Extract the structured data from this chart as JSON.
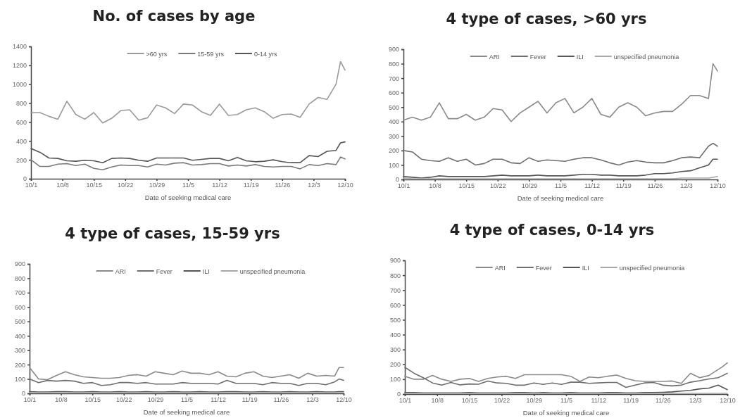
{
  "chart_data": [
    {
      "type": "line",
      "title": "No. of cases by age",
      "xlabel": "Date of seeking medical care",
      "legend": "top",
      "grid": false,
      "marker": "none",
      "x": [
        "--10-01",
        "--10-03",
        "--10-05",
        "--10-07",
        "--10-09",
        "--10-11",
        "--10-13",
        "--10-15",
        "--10-17",
        "--10-19",
        "--10-21",
        "--10-23",
        "--10-25",
        "--10-27",
        "--10-29",
        "--10-31",
        "--11-02",
        "--11-04",
        "--11-06",
        "--11-08",
        "--11-10",
        "--11-12",
        "--11-14",
        "--11-16",
        "--11-18",
        "--11-20",
        "--11-22",
        "--11-24",
        "--11-26",
        "--11-28",
        "--11-30",
        "--12-02",
        "--12-04",
        "--12-06",
        "--12-08",
        "--12-09",
        "--12-10"
      ],
      "xlim": [
        "--10-01",
        "--12-10"
      ],
      "xticks": [
        {
          "value": "--10-01",
          "label": "10/1"
        },
        {
          "value": "--10-08",
          "label": "10/8"
        },
        {
          "value": "--10-15",
          "label": "10/15"
        },
        {
          "value": "--10-22",
          "label": "10/22"
        },
        {
          "value": "--10-29",
          "label": "10/29"
        },
        {
          "value": "--11-05",
          "label": "11/5"
        },
        {
          "value": "--11-12",
          "label": "11/12"
        },
        {
          "value": "--11-19",
          "label": "11/19"
        },
        {
          "value": "--11-26",
          "label": "11/26"
        },
        {
          "value": "--12-03",
          "label": "12/3"
        },
        {
          "value": "--12-10",
          "label": "12/10"
        }
      ],
      "ylim": [
        0,
        1400
      ],
      "yticks": [
        0,
        200,
        400,
        600,
        800,
        1000,
        1200,
        1400
      ],
      "series": [
        {
          "name": ">60 yrs",
          "color": "#9a9a9a",
          "values": [
            700,
            700,
            660,
            630,
            820,
            680,
            630,
            700,
            590,
            640,
            720,
            730,
            620,
            645,
            780,
            750,
            690,
            790,
            780,
            710,
            670,
            790,
            670,
            680,
            730,
            750,
            710,
            640,
            680,
            685,
            650,
            790,
            860,
            840,
            1000,
            1240,
            1150
          ]
        },
        {
          "name": "15-59 yrs",
          "color": "#7a7a7a",
          "values": [
            200,
            130,
            130,
            155,
            160,
            140,
            155,
            110,
            95,
            125,
            145,
            140,
            140,
            125,
            155,
            145,
            165,
            170,
            145,
            150,
            160,
            160,
            135,
            145,
            135,
            150,
            130,
            125,
            130,
            130,
            105,
            150,
            140,
            160,
            150,
            230,
            210
          ]
        },
        {
          "name": "0-14 yrs",
          "color": "#555555",
          "values": [
            320,
            280,
            220,
            215,
            190,
            185,
            195,
            190,
            170,
            215,
            220,
            215,
            195,
            185,
            220,
            220,
            220,
            220,
            195,
            205,
            215,
            215,
            190,
            225,
            190,
            180,
            185,
            200,
            180,
            170,
            170,
            245,
            235,
            290,
            300,
            380,
            390
          ]
        }
      ]
    },
    {
      "type": "line",
      "title": "4 type of cases, >60 yrs",
      "xlabel": "Date of seeking medical care",
      "legend": "top",
      "grid": false,
      "marker": "none",
      "x": [
        "--10-01",
        "--10-03",
        "--10-05",
        "--10-07",
        "--10-09",
        "--10-11",
        "--10-13",
        "--10-15",
        "--10-17",
        "--10-19",
        "--10-21",
        "--10-23",
        "--10-25",
        "--10-27",
        "--10-29",
        "--10-31",
        "--11-02",
        "--11-04",
        "--11-06",
        "--11-08",
        "--11-10",
        "--11-12",
        "--11-14",
        "--11-16",
        "--11-18",
        "--11-20",
        "--11-22",
        "--11-24",
        "--11-26",
        "--11-28",
        "--11-30",
        "--12-02",
        "--12-04",
        "--12-06",
        "--12-08",
        "--12-09",
        "--12-10"
      ],
      "xlim": [
        "--10-01",
        "--12-10"
      ],
      "xticks": [
        {
          "value": "--10-01",
          "label": "10/1"
        },
        {
          "value": "--10-08",
          "label": "10/8"
        },
        {
          "value": "--10-15",
          "label": "10/15"
        },
        {
          "value": "--10-22",
          "label": "10/22"
        },
        {
          "value": "--10-29",
          "label": "10/29"
        },
        {
          "value": "--11-05",
          "label": "11/5"
        },
        {
          "value": "--11-12",
          "label": "11/12"
        },
        {
          "value": "--11-19",
          "label": "11/19"
        },
        {
          "value": "--11-26",
          "label": "11/26"
        },
        {
          "value": "--12-03",
          "label": "12/3"
        },
        {
          "value": "--12-10",
          "label": "12/10"
        }
      ],
      "ylim": [
        0,
        900
      ],
      "yticks": [
        0,
        100,
        200,
        300,
        400,
        500,
        600,
        700,
        800,
        900
      ],
      "series": [
        {
          "name": "ARI",
          "color": "#8a8a8a",
          "values": [
            410,
            430,
            410,
            430,
            530,
            420,
            420,
            450,
            410,
            430,
            490,
            480,
            400,
            460,
            500,
            540,
            460,
            530,
            560,
            460,
            500,
            560,
            450,
            430,
            500,
            530,
            500,
            440,
            460,
            470,
            470,
            520,
            580,
            580,
            560,
            800,
            750
          ]
        },
        {
          "name": "Fever",
          "color": "#6e6e6e",
          "values": [
            200,
            190,
            140,
            130,
            125,
            150,
            125,
            140,
            100,
            110,
            140,
            140,
            115,
            110,
            150,
            125,
            135,
            130,
            125,
            140,
            150,
            150,
            135,
            115,
            100,
            120,
            130,
            120,
            115,
            115,
            130,
            150,
            155,
            150,
            230,
            250,
            230
          ]
        },
        {
          "name": "ILI",
          "color": "#555555",
          "values": [
            20,
            15,
            10,
            15,
            25,
            20,
            20,
            20,
            20,
            20,
            25,
            30,
            25,
            25,
            25,
            30,
            25,
            25,
            25,
            30,
            35,
            35,
            30,
            30,
            25,
            25,
            25,
            30,
            40,
            40,
            45,
            55,
            60,
            80,
            100,
            140,
            140
          ]
        },
        {
          "name": "unspecified pneumonia",
          "color": "#a8a8a8",
          "values": [
            10,
            5,
            5,
            5,
            5,
            5,
            5,
            5,
            5,
            5,
            5,
            5,
            5,
            5,
            5,
            5,
            5,
            5,
            5,
            5,
            5,
            5,
            5,
            5,
            5,
            5,
            5,
            5,
            5,
            5,
            5,
            10,
            10,
            10,
            10,
            15,
            20
          ]
        }
      ]
    },
    {
      "type": "line",
      "title": "4 type of cases, 15-59 yrs",
      "xlabel": "Date of seeking medical care",
      "legend": "top",
      "grid": false,
      "marker": "none",
      "x": [
        "--10-01",
        "--10-03",
        "--10-05",
        "--10-07",
        "--10-09",
        "--10-11",
        "--10-13",
        "--10-15",
        "--10-17",
        "--10-19",
        "--10-21",
        "--10-23",
        "--10-25",
        "--10-27",
        "--10-29",
        "--10-31",
        "--11-02",
        "--11-04",
        "--11-06",
        "--11-08",
        "--11-10",
        "--11-12",
        "--11-14",
        "--11-16",
        "--11-18",
        "--11-20",
        "--11-22",
        "--11-24",
        "--11-26",
        "--11-28",
        "--11-30",
        "--12-02",
        "--12-04",
        "--12-06",
        "--12-08",
        "--12-09",
        "--12-10"
      ],
      "xlim": [
        "--10-01",
        "--12-10"
      ],
      "xticks": [
        {
          "value": "--10-01",
          "label": "10/1"
        },
        {
          "value": "--10-08",
          "label": "10/8"
        },
        {
          "value": "--10-15",
          "label": "10/15"
        },
        {
          "value": "--10-22",
          "label": "10/22"
        },
        {
          "value": "--10-29",
          "label": "10/29"
        },
        {
          "value": "--11-05",
          "label": "11/5"
        },
        {
          "value": "--11-12",
          "label": "11/12"
        },
        {
          "value": "--11-19",
          "label": "11/19"
        },
        {
          "value": "--11-26",
          "label": "11/26"
        },
        {
          "value": "--12-03",
          "label": "12/3"
        },
        {
          "value": "--12-10",
          "label": "12/10"
        }
      ],
      "ylim": [
        0,
        900
      ],
      "yticks": [
        0,
        100,
        200,
        300,
        400,
        500,
        600,
        700,
        800,
        900
      ],
      "series": [
        {
          "name": "ARI",
          "color": "#8a8a8a",
          "values": [
            180,
            100,
            95,
            125,
            150,
            130,
            115,
            110,
            105,
            105,
            110,
            125,
            130,
            120,
            150,
            140,
            130,
            155,
            140,
            140,
            130,
            150,
            120,
            115,
            140,
            150,
            120,
            110,
            120,
            130,
            105,
            140,
            120,
            125,
            120,
            180,
            180
          ]
        },
        {
          "name": "Fever",
          "color": "#6e6e6e",
          "values": [
            100,
            75,
            90,
            85,
            90,
            85,
            70,
            75,
            55,
            60,
            75,
            75,
            70,
            75,
            65,
            65,
            65,
            75,
            70,
            70,
            70,
            65,
            90,
            70,
            70,
            70,
            60,
            75,
            70,
            70,
            55,
            70,
            70,
            60,
            80,
            100,
            90
          ]
        },
        {
          "name": "ILI",
          "color": "#555555",
          "values": [
            12,
            10,
            10,
            12,
            12,
            10,
            10,
            12,
            10,
            10,
            12,
            10,
            10,
            12,
            10,
            10,
            12,
            10,
            10,
            12,
            10,
            10,
            12,
            12,
            10,
            10,
            12,
            10,
            10,
            12,
            10,
            10,
            12,
            10,
            10,
            12,
            12
          ]
        },
        {
          "name": "unspecified pneumonia",
          "color": "#a8a8a8",
          "values": [
            5,
            5,
            5,
            5,
            5,
            5,
            5,
            5,
            5,
            5,
            5,
            5,
            5,
            5,
            5,
            5,
            5,
            5,
            5,
            5,
            5,
            5,
            5,
            5,
            5,
            5,
            5,
            5,
            5,
            5,
            5,
            5,
            5,
            5,
            5,
            5,
            5
          ]
        }
      ]
    },
    {
      "type": "line",
      "title": "4 type of cases, 0-14 yrs",
      "xlabel": "Date of seeking medical care",
      "legend": "top",
      "grid": false,
      "marker": "none",
      "x": [
        "--10-01",
        "--10-03",
        "--10-05",
        "--10-07",
        "--10-09",
        "--10-11",
        "--10-13",
        "--10-15",
        "--10-17",
        "--10-19",
        "--10-21",
        "--10-23",
        "--10-25",
        "--10-27",
        "--10-29",
        "--10-31",
        "--11-02",
        "--11-04",
        "--11-06",
        "--11-08",
        "--11-10",
        "--11-12",
        "--11-14",
        "--11-16",
        "--11-18",
        "--11-20",
        "--11-22",
        "--11-24",
        "--11-26",
        "--11-28",
        "--11-30",
        "--12-02",
        "--12-04",
        "--12-06",
        "--12-08",
        "--12-09",
        "--12-10"
      ],
      "xlim": [
        "--10-01",
        "--12-10"
      ],
      "xticks": [
        {
          "value": "--10-01",
          "label": "10/1"
        },
        {
          "value": "--10-08",
          "label": "10/8"
        },
        {
          "value": "--10-15",
          "label": "10/15"
        },
        {
          "value": "--10-22",
          "label": "10/22"
        },
        {
          "value": "--10-29",
          "label": "10/29"
        },
        {
          "value": "--11-05",
          "label": "11/5"
        },
        {
          "value": "--11-12",
          "label": "11/12"
        },
        {
          "value": "--11-19",
          "label": "11/19"
        },
        {
          "value": "--11-26",
          "label": "11/26"
        },
        {
          "value": "--12-03",
          "label": "12/3"
        },
        {
          "value": "--12-10",
          "label": "12/10"
        }
      ],
      "ylim": [
        0,
        900
      ],
      "yticks": [
        0,
        100,
        200,
        300,
        400,
        500,
        600,
        700,
        800,
        900
      ],
      "series": [
        {
          "name": "ARI",
          "color": "#8a8a8a",
          "values": [
            120,
            100,
            100,
            125,
            100,
            85,
            100,
            105,
            85,
            105,
            115,
            120,
            105,
            130,
            130,
            130,
            130,
            130,
            120,
            85,
            115,
            110,
            120,
            128,
            105,
            90,
            85,
            85,
            85,
            88,
            72,
            140,
            110,
            125,
            165,
            185,
            210
          ]
        },
        {
          "name": "Fever",
          "color": "#6e6e6e",
          "values": [
            180,
            140,
            110,
            75,
            60,
            78,
            62,
            68,
            66,
            88,
            75,
            72,
            60,
            60,
            75,
            65,
            75,
            65,
            80,
            80,
            72,
            75,
            78,
            78,
            45,
            60,
            75,
            78,
            60,
            55,
            60,
            80,
            90,
            102,
            110,
            125,
            140
          ]
        },
        {
          "name": "ILI",
          "color": "#555555",
          "values": [
            10,
            10,
            8,
            8,
            8,
            8,
            8,
            10,
            8,
            8,
            8,
            8,
            10,
            10,
            8,
            10,
            8,
            8,
            10,
            8,
            8,
            8,
            10,
            10,
            8,
            8,
            10,
            10,
            12,
            15,
            20,
            25,
            35,
            40,
            60,
            45,
            30
          ]
        },
        {
          "name": "unspecified pneumonia",
          "color": "#a8a8a8",
          "values": [
            5,
            5,
            5,
            5,
            5,
            5,
            5,
            5,
            5,
            5,
            5,
            5,
            5,
            5,
            5,
            5,
            5,
            5,
            5,
            5,
            5,
            5,
            5,
            5,
            5,
            5,
            5,
            5,
            5,
            5,
            5,
            5,
            5,
            5,
            5,
            5,
            5
          ]
        }
      ]
    }
  ]
}
